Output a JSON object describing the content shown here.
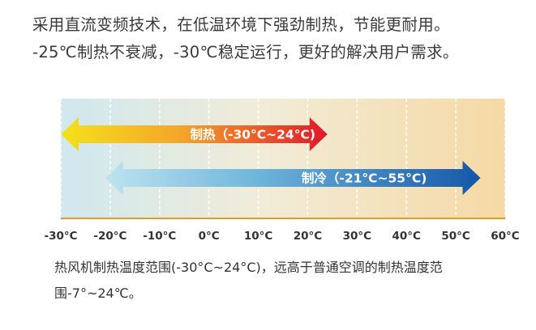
{
  "intro": {
    "line1": "采用直流变频技术，在低温环境下强劲制热，节能更耐用。",
    "line2": "-25℃制热不衰减，-30℃稳定运行，更好的解决用户需求。"
  },
  "diagram": {
    "ticks": [
      {
        "value": -30,
        "label": "-30°C"
      },
      {
        "value": -20,
        "label": "-20°C"
      },
      {
        "value": -10,
        "label": "-10°C"
      },
      {
        "value": 0,
        "label": "0°C"
      },
      {
        "value": 10,
        "label": "10°C"
      },
      {
        "value": 20,
        "label": "20°C"
      },
      {
        "value": 30,
        "label": "30°C"
      },
      {
        "value": 40,
        "label": "40°C"
      },
      {
        "value": 50,
        "label": "50°C"
      },
      {
        "value": 60,
        "label": "60°C"
      }
    ],
    "range_min": -30,
    "range_max": 60,
    "heating": {
      "label": "制热（-30°C~24°C)",
      "min": -30,
      "max": 24,
      "color_start": "#f4e21a",
      "color_end": "#e0182a"
    },
    "cooling": {
      "label": "制冷（-21°C~55°C)",
      "min": -21,
      "max": 55,
      "color_start": "#bfe3ef",
      "color_end": "#1557a8"
    },
    "background_cold": "#cfe8ef",
    "background_warm": "#f6d9a4",
    "axis_color": "#e39a2b"
  },
  "footnote": {
    "line1": "热风机制热温度范围(-30°C~24°C)，远高于普通空调的制热温度范",
    "line2": "围-7°~24℃。"
  }
}
